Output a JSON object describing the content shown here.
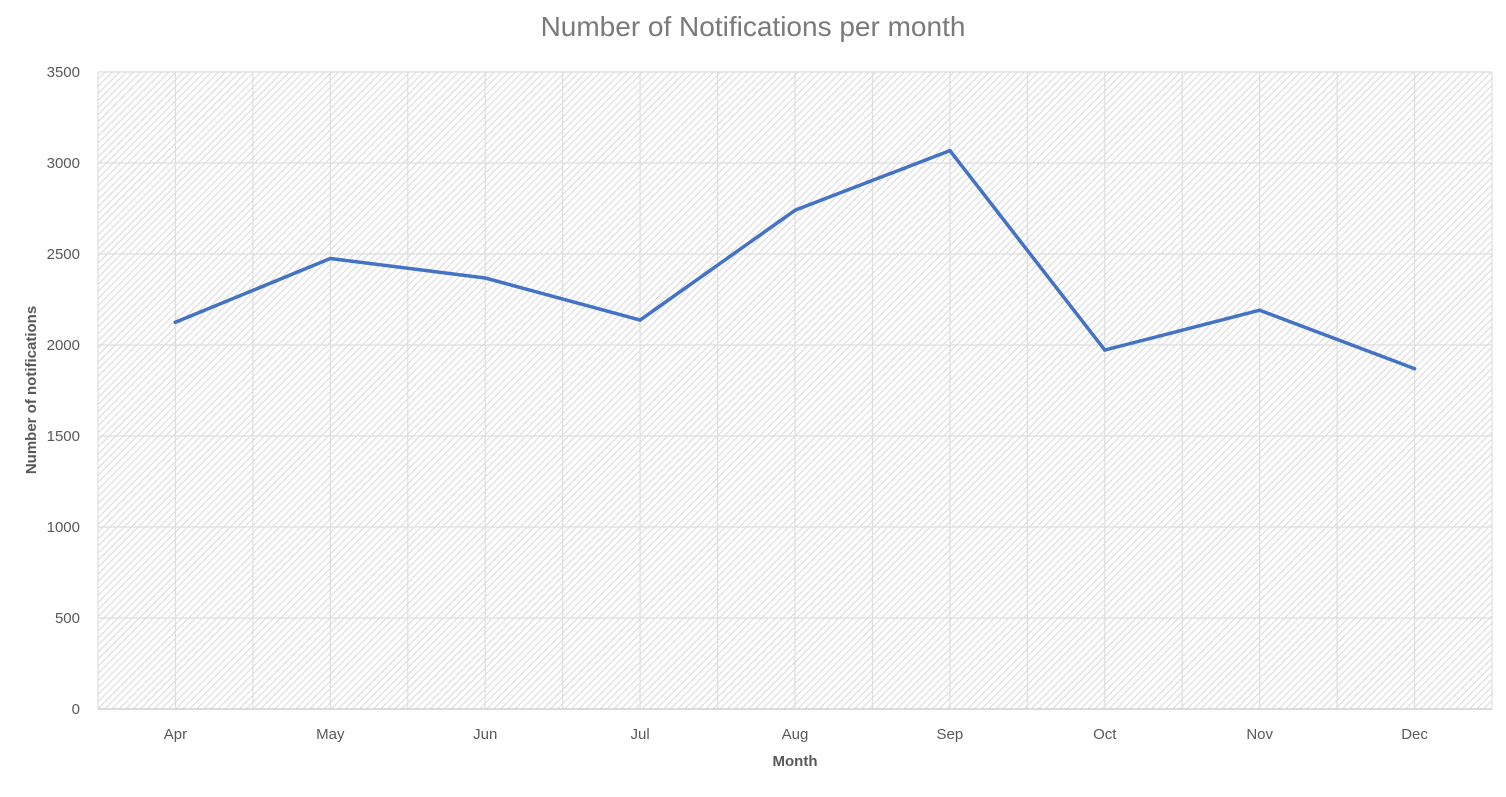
{
  "chart_data": {
    "type": "line",
    "title": "Number of Notifications per month",
    "xlabel": "Month",
    "ylabel": "Number of notifications",
    "categories": [
      "Apr",
      "May",
      "Jun",
      "Jul",
      "Aug",
      "Sep",
      "Oct",
      "Nov",
      "Dec"
    ],
    "series": [
      {
        "values": [
          2125,
          2475,
          2368,
          2137,
          2740,
          3068,
          1972,
          2191,
          1870
        ],
        "color": "#4472c4"
      }
    ],
    "ylim": [
      0,
      3500
    ],
    "yticks": [
      0,
      500,
      1000,
      1500,
      2000,
      2500,
      3000,
      3500
    ],
    "grid": true,
    "legend": "none",
    "plot_fill": "hatched"
  }
}
